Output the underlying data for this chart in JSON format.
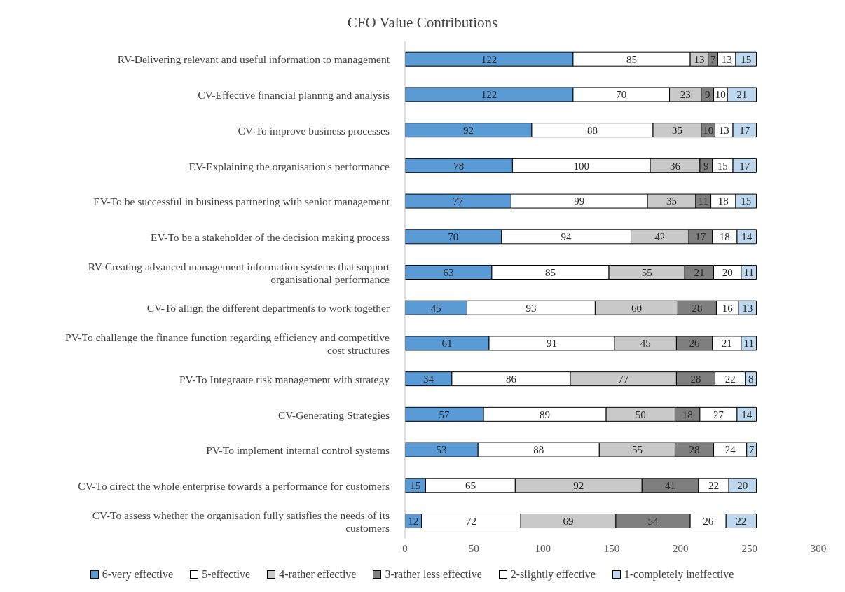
{
  "chart_data": {
    "type": "bar",
    "orientation": "horizontal",
    "stacked": true,
    "title": "CFO Value Contributions",
    "categories": [
      "RV-Delivering relevant and useful information to management",
      "CV-Effective financial plannng and analysis",
      "CV-To improve business processes",
      "EV-Explaining the organisation's performance",
      "EV-To be successful in business partnering with senior management",
      "EV-To be a stakeholder of the decision making process",
      "RV-Creating advanced management information systems that support organisational performance",
      "CV-To allign the different departments to work together",
      "PV-To challenge the finance function regarding efficiency and competitive cost structures",
      "PV-To Integraate risk management with strategy",
      "CV-Generating Strategies",
      "PV-To implement internal control systems",
      "CV-To direct the whole enterprise towards a performance for customers",
      "CV-To assess whether the organisation fully satisfies the needs of its customers"
    ],
    "series": [
      {
        "name": "6-very effective",
        "color": "#5b9bd5",
        "values": [
          122,
          122,
          92,
          78,
          77,
          70,
          63,
          45,
          61,
          34,
          57,
          53,
          15,
          12
        ]
      },
      {
        "name": "5-effective",
        "color": "#ffffff",
        "values": [
          85,
          70,
          88,
          100,
          99,
          94,
          85,
          93,
          91,
          86,
          89,
          88,
          65,
          72
        ]
      },
      {
        "name": "4-rather effective",
        "color": "#c9c9c9",
        "values": [
          13,
          23,
          35,
          36,
          35,
          42,
          55,
          60,
          45,
          77,
          50,
          55,
          92,
          69
        ]
      },
      {
        "name": "3-rather less effective",
        "color": "#7f7f7f",
        "values": [
          7,
          9,
          10,
          9,
          11,
          17,
          21,
          28,
          26,
          28,
          18,
          28,
          41,
          54
        ]
      },
      {
        "name": "2-slightly effective",
        "color": "#ffffff",
        "values": [
          13,
          10,
          13,
          15,
          18,
          18,
          20,
          16,
          21,
          22,
          27,
          24,
          22,
          26
        ]
      },
      {
        "name": "1-completely ineffective",
        "color": "#bdd7ee",
        "values": [
          15,
          21,
          17,
          17,
          15,
          14,
          11,
          13,
          11,
          8,
          14,
          7,
          20,
          22
        ]
      }
    ],
    "xlim": [
      0,
      300
    ],
    "xticks": [
      0,
      50,
      100,
      150,
      200,
      250,
      300
    ],
    "grid": false,
    "legend": "bottom",
    "data_labels": true
  }
}
